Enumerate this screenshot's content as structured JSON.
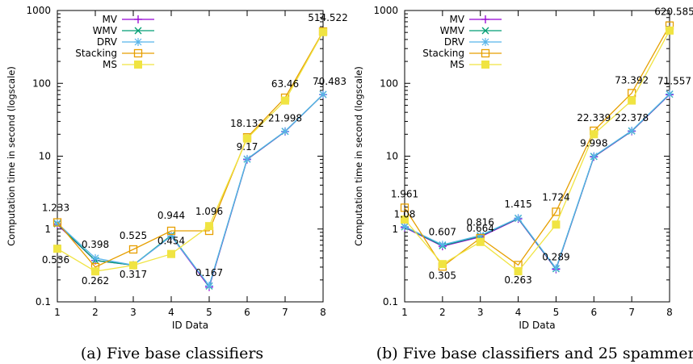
{
  "chart_data": [
    {
      "type": "line",
      "caption": "(a) Five base classifiers",
      "xlabel": "ID Data",
      "ylabel": "Computation time in second (logscale)",
      "x": [
        1,
        2,
        3,
        4,
        5,
        6,
        7,
        8
      ],
      "xlim": [
        1,
        8
      ],
      "ylim": [
        0.1,
        1000
      ],
      "yscale": "log",
      "yticks": [
        "0.1",
        "1",
        "10",
        "100",
        "1000"
      ],
      "grid": false,
      "legend_position": "top-left",
      "series": [
        {
          "name": "MV",
          "color": "#9400d3",
          "marker": "plus",
          "values": [
            1.15,
            0.37,
            0.32,
            0.8,
            0.16,
            9.0,
            21.8,
            70.0
          ]
        },
        {
          "name": "WMV",
          "color": "#009e73",
          "marker": "cross",
          "values": [
            1.18,
            0.37,
            0.32,
            0.82,
            0.165,
            9.1,
            21.9,
            70.3
          ]
        },
        {
          "name": "DRV",
          "color": "#56b4e9",
          "marker": "star",
          "values": [
            1.2,
            0.398,
            0.32,
            0.8,
            0.167,
            9.17,
            21.998,
            70.483
          ]
        },
        {
          "name": "Stacking",
          "color": "#e69f00",
          "marker": "square-open",
          "values": [
            1.233,
            0.3,
            0.525,
            0.944,
            0.944,
            18.132,
            63.46,
            514.522
          ]
        },
        {
          "name": "MS",
          "color": "#f0e442",
          "marker": "square-filled",
          "values": [
            0.536,
            0.262,
            0.317,
            0.454,
            1.096,
            17.5,
            58.0,
            505.0
          ]
        }
      ],
      "annotations": [
        {
          "text": "1.233",
          "x": 1,
          "y": 1.233
        },
        {
          "text": "0.536",
          "x": 1,
          "y": 0.536
        },
        {
          "text": "0.398",
          "x": 2,
          "y": 0.398
        },
        {
          "text": "0.262",
          "x": 2,
          "y": 0.262
        },
        {
          "text": "0.525",
          "x": 3,
          "y": 0.525
        },
        {
          "text": "0.317",
          "x": 3,
          "y": 0.317
        },
        {
          "text": "0.944",
          "x": 4,
          "y": 0.944
        },
        {
          "text": "0.454",
          "x": 4,
          "y": 0.454
        },
        {
          "text": "1.096",
          "x": 5,
          "y": 1.096
        },
        {
          "text": "0.167",
          "x": 5,
          "y": 0.167
        },
        {
          "text": "18.132",
          "x": 6,
          "y": 18.132
        },
        {
          "text": "9.17",
          "x": 6,
          "y": 9.17
        },
        {
          "text": "63.46",
          "x": 7,
          "y": 63.46
        },
        {
          "text": "21.998",
          "x": 7,
          "y": 21.998
        },
        {
          "text": "514.522",
          "x": 8,
          "y": 514.522
        },
        {
          "text": "70.483",
          "x": 8,
          "y": 70.483
        }
      ]
    },
    {
      "type": "line",
      "caption": "(b) Five base classifiers and 25 spammers",
      "xlabel": "ID Data",
      "ylabel": "Computation time in second (logscale)",
      "x": [
        1,
        2,
        3,
        4,
        5,
        6,
        7,
        8
      ],
      "xlim": [
        1,
        8
      ],
      "ylim": [
        0.1,
        1000
      ],
      "yscale": "log",
      "yticks": [
        "0.1",
        "1",
        "10",
        "100",
        "1000"
      ],
      "grid": false,
      "legend_position": "top-left",
      "series": [
        {
          "name": "MV",
          "color": "#9400d3",
          "marker": "plus",
          "values": [
            1.05,
            0.58,
            0.78,
            1.38,
            0.28,
            9.8,
            22.0,
            70.0
          ]
        },
        {
          "name": "WMV",
          "color": "#009e73",
          "marker": "cross",
          "values": [
            1.07,
            0.59,
            0.8,
            1.4,
            0.285,
            9.9,
            22.2,
            71.0
          ]
        },
        {
          "name": "DRV",
          "color": "#56b4e9",
          "marker": "star",
          "values": [
            1.08,
            0.607,
            0.816,
            1.415,
            0.289,
            9.998,
            22.378,
            71.557
          ]
        },
        {
          "name": "Stacking",
          "color": "#e69f00",
          "marker": "square-open",
          "values": [
            1.961,
            0.305,
            0.75,
            0.32,
            1.724,
            22.339,
            73.392,
            620.585
          ]
        },
        {
          "name": "MS",
          "color": "#f0e442",
          "marker": "square-filled",
          "values": [
            1.35,
            0.33,
            0.664,
            0.263,
            1.15,
            20.0,
            58.0,
            530.0
          ]
        }
      ],
      "annotations": [
        {
          "text": "1.961",
          "x": 1,
          "y": 1.961
        },
        {
          "text": "1.08",
          "x": 1,
          "y": 1.08
        },
        {
          "text": "0.607",
          "x": 2,
          "y": 0.607
        },
        {
          "text": "0.305",
          "x": 2,
          "y": 0.305
        },
        {
          "text": "0.816",
          "x": 3,
          "y": 0.816
        },
        {
          "text": "0.664",
          "x": 3,
          "y": 0.664
        },
        {
          "text": "1.415",
          "x": 4,
          "y": 1.415
        },
        {
          "text": "0.263",
          "x": 4,
          "y": 0.263
        },
        {
          "text": "1.724",
          "x": 5,
          "y": 1.724
        },
        {
          "text": "0.289",
          "x": 5,
          "y": 0.289
        },
        {
          "text": "22.339",
          "x": 6,
          "y": 22.339
        },
        {
          "text": "9.998",
          "x": 6,
          "y": 9.998
        },
        {
          "text": "73.392",
          "x": 7,
          "y": 73.392
        },
        {
          "text": "22.378",
          "x": 7,
          "y": 22.378
        },
        {
          "text": "620.585",
          "x": 8,
          "y": 620.585
        },
        {
          "text": "71.557",
          "x": 8,
          "y": 71.557
        }
      ]
    }
  ]
}
